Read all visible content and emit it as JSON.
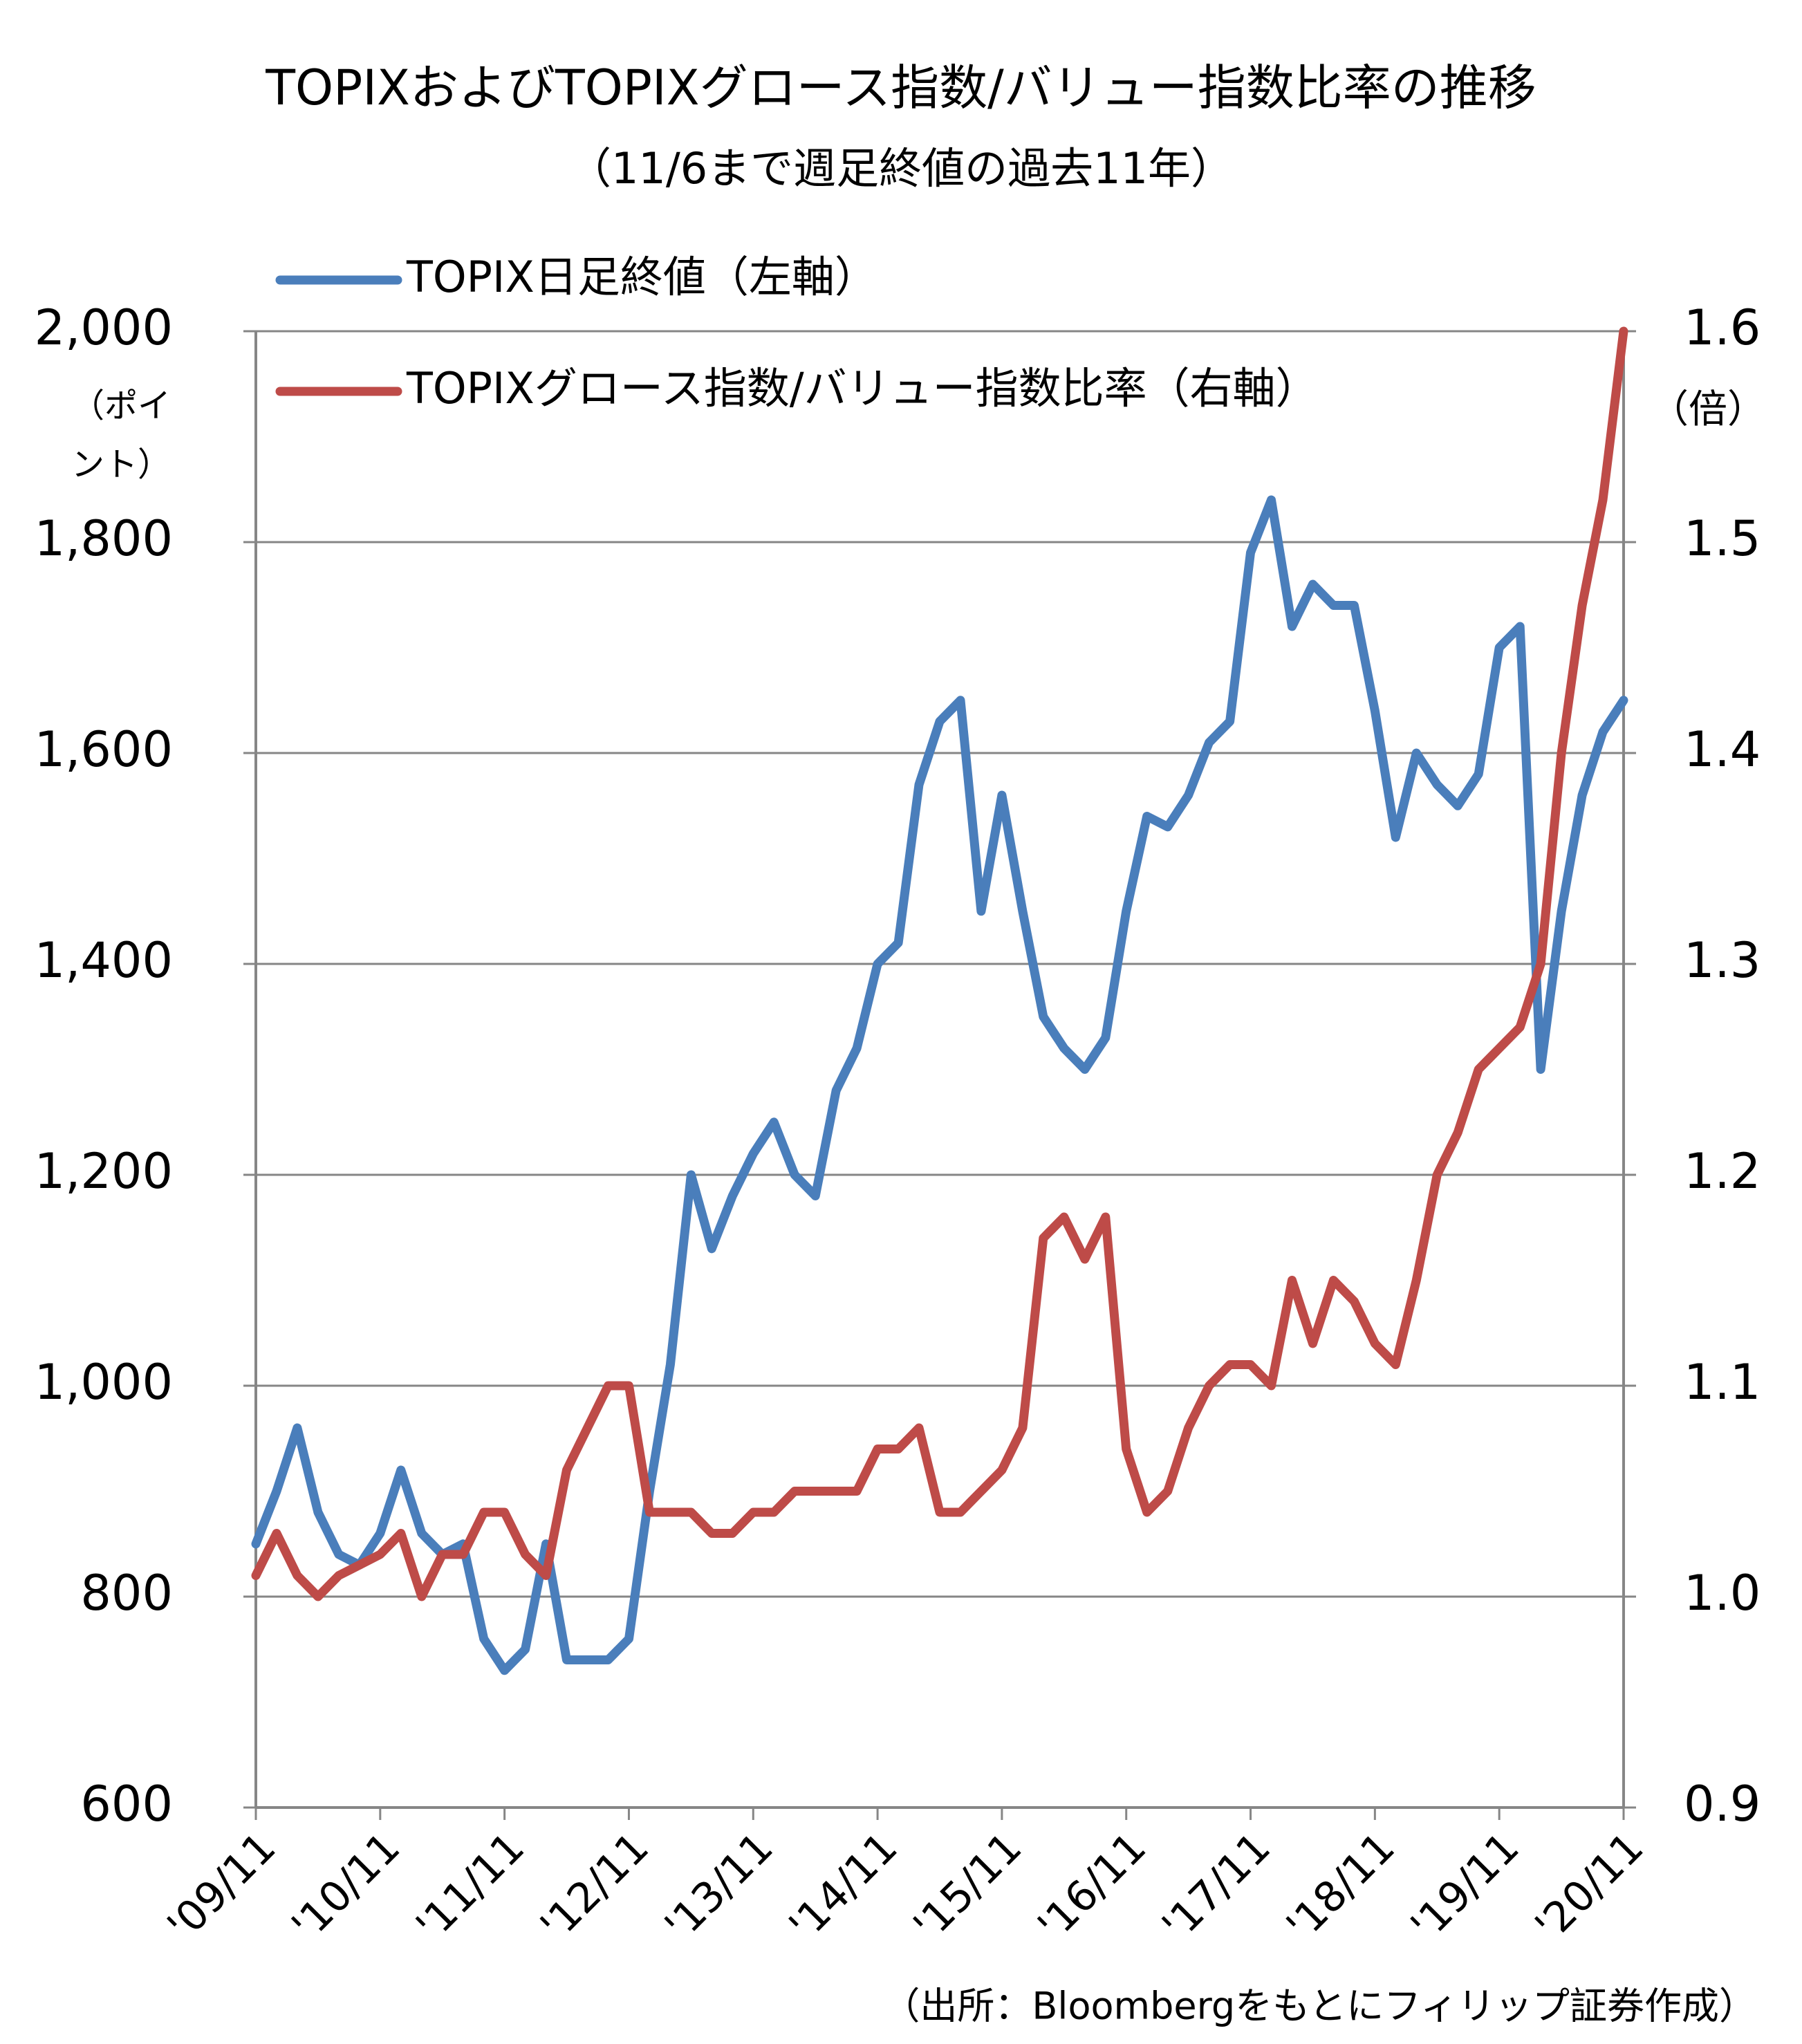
{
  "chart_data": {
    "type": "line",
    "title": "TOPIXおよびTOPIXグロース指数/バリュー指数比率の推移",
    "subtitle": "（11/6まで週足終値の過去11年）",
    "ylabel": [
      "（ポイ",
      "ント）"
    ],
    "y2label": "（倍）",
    "source": "（出所：Bloombergをもとにフィリップ証券作成）",
    "categories": [
      "'09/11",
      null,
      null,
      null,
      null,
      null,
      "'10/11",
      null,
      null,
      null,
      null,
      null,
      "'11/11",
      null,
      null,
      null,
      null,
      null,
      "'12/11",
      null,
      null,
      null,
      null,
      null,
      "'13/11",
      null,
      null,
      null,
      null,
      null,
      "'14/11",
      null,
      null,
      null,
      null,
      null,
      "'15/11",
      null,
      null,
      null,
      null,
      null,
      "'16/11",
      null,
      null,
      null,
      null,
      null,
      "'17/11",
      null,
      null,
      null,
      null,
      null,
      "'18/11",
      null,
      null,
      null,
      null,
      null,
      "'19/11",
      null,
      null,
      null,
      null,
      null,
      "'20/11"
    ],
    "series": [
      {
        "name": "TOPIX日足終値（左軸）",
        "color": "#4a7ebb",
        "values": [
          850,
          900,
          960,
          880,
          840,
          830,
          860,
          920,
          860,
          840,
          850,
          760,
          730,
          750,
          850,
          740,
          740,
          740,
          760,
          900,
          1020,
          1200,
          1130,
          1180,
          1220,
          1250,
          1200,
          1180,
          1280,
          1320,
          1400,
          1420,
          1570,
          1630,
          1650,
          1450,
          1560,
          1450,
          1350,
          1320,
          1300,
          1330,
          1450,
          1540,
          1530,
          1560,
          1610,
          1630,
          1790,
          1840,
          1720,
          1760,
          1740,
          1740,
          1640,
          1520,
          1600,
          1570,
          1550,
          1580,
          1700,
          1720,
          1300,
          1450,
          1560,
          1620,
          1650
        ]
      },
      {
        "name": "TOPIXグロース指数/バリュー指数比率（右軸）",
        "color": "#be4b48",
        "axis": "y2",
        "values": [
          1.01,
          1.03,
          1.01,
          1.0,
          1.01,
          1.015,
          1.02,
          1.03,
          1.0,
          1.02,
          1.02,
          1.04,
          1.04,
          1.02,
          1.01,
          1.06,
          1.08,
          1.1,
          1.1,
          1.04,
          1.04,
          1.04,
          1.03,
          1.03,
          1.04,
          1.04,
          1.05,
          1.05,
          1.05,
          1.05,
          1.07,
          1.07,
          1.08,
          1.04,
          1.04,
          1.05,
          1.06,
          1.08,
          1.17,
          1.18,
          1.16,
          1.18,
          1.07,
          1.04,
          1.05,
          1.08,
          1.1,
          1.11,
          1.11,
          1.1,
          1.15,
          1.12,
          1.15,
          1.14,
          1.12,
          1.11,
          1.15,
          1.2,
          1.22,
          1.25,
          1.26,
          1.27,
          1.3,
          1.4,
          1.47,
          1.52,
          1.6
        ]
      }
    ],
    "ylim": [
      600,
      2000
    ],
    "yticks": [
      600,
      800,
      {
        "value": 1000,
        "label": "1,000"
      },
      {
        "value": 1200,
        "label": "1,200"
      },
      {
        "value": 1400,
        "label": "1,400"
      },
      {
        "value": 1600,
        "label": "1,600"
      },
      {
        "value": 1800,
        "label": "1,800"
      },
      {
        "value": 2000,
        "label": "2,000"
      }
    ],
    "y2lim": [
      0.9,
      1.6
    ],
    "y2ticks": [
      0.9,
      {
        "value": 1.0,
        "label": "1.0"
      },
      1.1,
      1.2,
      1.3,
      1.4,
      1.5,
      1.6
    ],
    "grid": true
  }
}
